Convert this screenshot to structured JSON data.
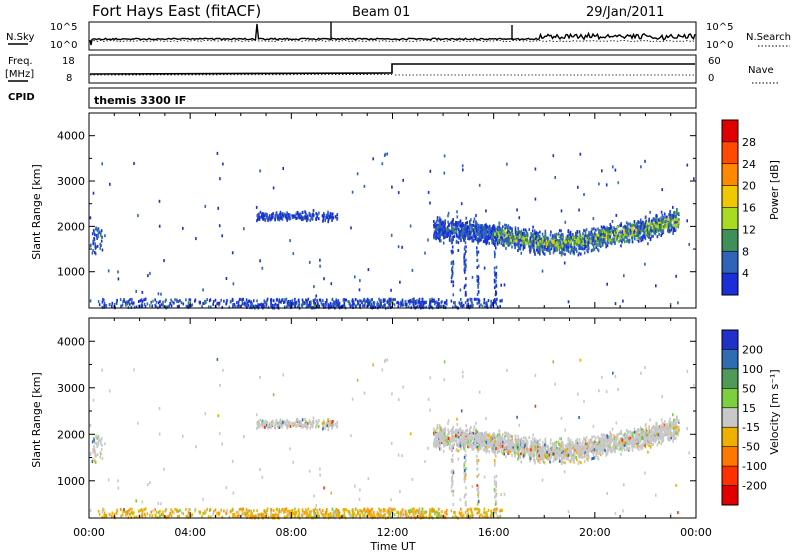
{
  "header": {
    "station": "Fort Hays East (fitACF)",
    "beam": "Beam 01",
    "date": "29/Jan/2011"
  },
  "noise_panel": {
    "left_label": "N.Sky",
    "right_label": "N.Search",
    "tick_top": "10^5",
    "tick_bottom": "10^0"
  },
  "freq_panel": {
    "left_label": "Freq.",
    "left_unit": "[MHz]",
    "right_label": "Nave",
    "left_ticks": [
      "18",
      "8"
    ],
    "right_ticks": [
      "60",
      "0"
    ],
    "freq_step_time_hours": 12
  },
  "cpid_panel": {
    "label": "CPID",
    "program": "themis 3300 IF"
  },
  "chart_data": [
    {
      "type": "heatmap",
      "name": "power",
      "ylabel": "Slant Range [km]",
      "xlabel": "Time UT",
      "xlim": [
        0,
        24
      ],
      "ylim": [
        200,
        4500
      ],
      "yticks": [
        "1000",
        "2000",
        "3000",
        "4000"
      ],
      "xticks": [
        "00:00",
        "04:00",
        "08:00",
        "12:00",
        "16:00",
        "20:00",
        "00:00"
      ],
      "colorbar": {
        "label": "Power [dB]",
        "ticks": [
          "28",
          "24",
          "20",
          "16",
          "12",
          "8",
          "4"
        ],
        "colors": [
          "#e00000",
          "#ff4a00",
          "#ff8a00",
          "#f0c800",
          "#a8dc20",
          "#3f8f5a",
          "#2f64b8",
          "#1a2fd8"
        ]
      }
    },
    {
      "type": "heatmap",
      "name": "velocity",
      "ylabel": "Slant Range [km]",
      "xlabel": "Time UT",
      "xlim": [
        0,
        24
      ],
      "ylim": [
        200,
        4500
      ],
      "yticks": [
        "1000",
        "2000",
        "3000",
        "4000"
      ],
      "xticks": [
        "00:00",
        "04:00",
        "08:00",
        "12:00",
        "16:00",
        "20:00",
        "00:00"
      ],
      "colorbar": {
        "label": "Velocity [m s⁻¹]",
        "ticks": [
          "200",
          "100",
          "50",
          "15",
          "-15",
          "-50",
          "-100",
          "-200"
        ],
        "colors": [
          "#2030c8",
          "#2f6cb0",
          "#4f9a58",
          "#7cd040",
          "#c8c8c8",
          "#f0b000",
          "#ff7800",
          "#ff3000",
          "#e00000"
        ]
      }
    }
  ]
}
